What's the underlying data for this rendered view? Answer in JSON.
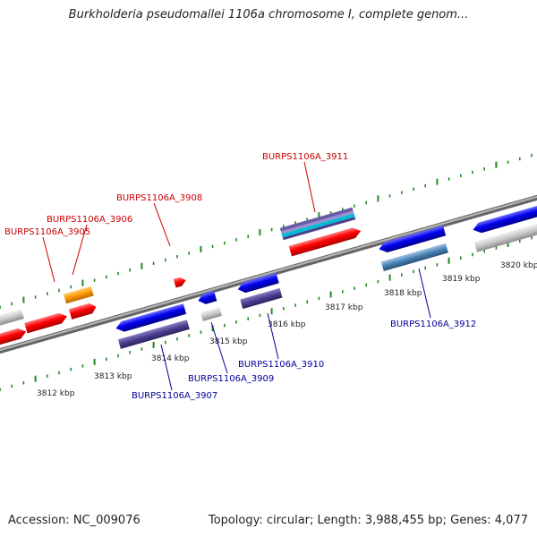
{
  "title": "Burkholderia pseudomallei 1106a chromosome I, complete genom...",
  "footer": {
    "accession": "Accession: NC_009076",
    "summary": "Topology: circular; Length: 3,988,455 bp; Genes: 4,077"
  },
  "colors": {
    "forward_gene": "#ff0000",
    "reverse_gene": "#0000ee",
    "forward_label": "#cc0000",
    "reverse_label": "#000099",
    "backbone": "#888888",
    "tick": "#228b22",
    "rna_orange": "#ff9900",
    "gray_feature": "#c0c0c0",
    "cds_purple": "#4b3f8f",
    "cds_steelblue": "#4682b4"
  },
  "ruler_labels": [
    "3812 kbp",
    "3813 kbp",
    "3814 kbp",
    "3815 kbp",
    "3816 kbp",
    "3817 kbp",
    "3818 kbp",
    "3819 kbp",
    "3820 kbp"
  ],
  "genes": [
    {
      "id": "BURPS1106A_3905",
      "strand": "+",
      "kbp": 3811.98
    },
    {
      "id": "BURPS1106A_3906",
      "strand": "+",
      "kbp": 3812.25
    },
    {
      "id": "BURPS1106A_3907",
      "strand": "-",
      "kbp": 3813.82
    },
    {
      "id": "BURPS1106A_3908",
      "strand": "+",
      "kbp": 3814.05
    },
    {
      "id": "BURPS1106A_3909",
      "strand": "-",
      "kbp": 3814.92
    },
    {
      "id": "BURPS1106A_3910",
      "strand": "-",
      "kbp": 3815.55
    },
    {
      "id": "BURPS1106A_3911",
      "strand": "+",
      "kbp": 3816.62
    },
    {
      "id": "BURPS1106A_3912",
      "strand": "-",
      "kbp": 3818.45
    }
  ]
}
